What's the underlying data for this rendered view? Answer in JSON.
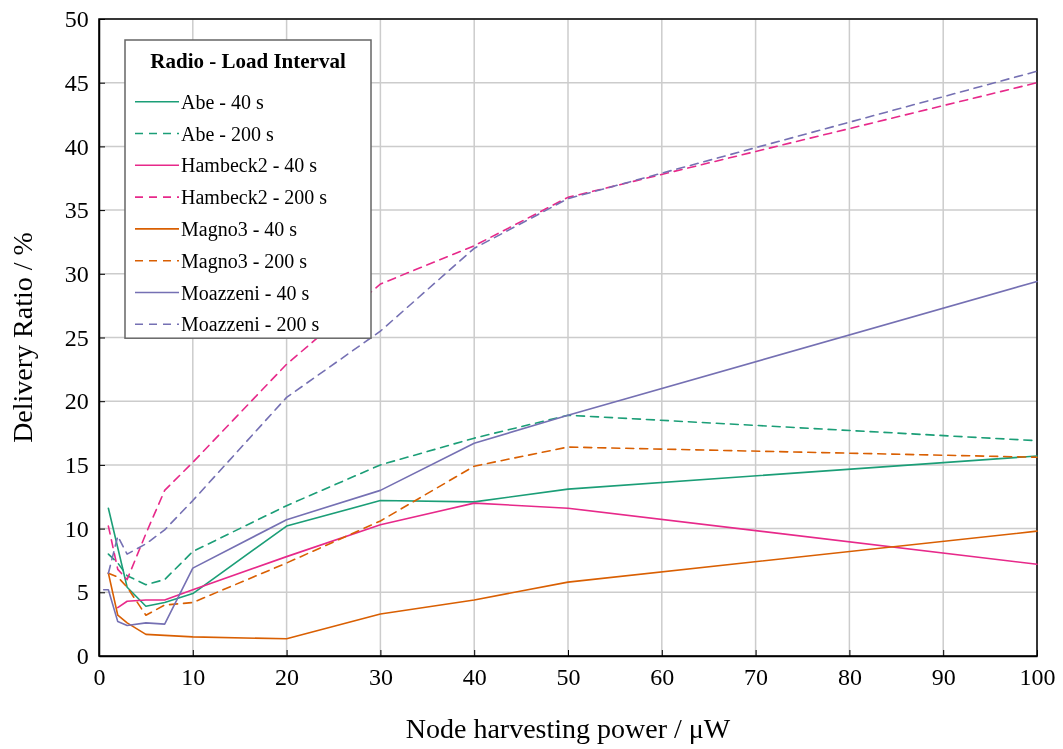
{
  "chart_data": {
    "type": "line",
    "xlabel": "Node harvesting power / μW",
    "ylabel": "Delivery Ratio / %",
    "legend_title": "Radio - Load Interval",
    "legend": "top left",
    "grid": true,
    "marker": "none",
    "xlim": [
      0,
      100
    ],
    "xticks": [
      0,
      10,
      20,
      30,
      40,
      50,
      60,
      70,
      80,
      90,
      100
    ],
    "ylim": [
      0,
      50
    ],
    "yticks": [
      0,
      5,
      10,
      15,
      20,
      25,
      30,
      35,
      40,
      45,
      50
    ],
    "series": [
      {
        "name": "Abe - 40 s",
        "color": "#1b9e77",
        "line_style": "solid",
        "x": [
          1,
          2,
          3,
          5,
          7,
          10,
          20,
          30,
          40,
          50,
          100
        ],
        "values": [
          11.6,
          8.5,
          5.4,
          3.9,
          4.2,
          4.9,
          10.2,
          12.2,
          12.1,
          13.1,
          15.7
        ]
      },
      {
        "name": "Abe - 200 s",
        "color": "#1b9e77",
        "line_style": "dashed",
        "x": [
          1,
          2,
          3,
          5,
          7,
          10,
          20,
          30,
          40,
          50,
          100
        ],
        "values": [
          8,
          7.3,
          6.3,
          5.6,
          6,
          8.2,
          11.8,
          15,
          17.1,
          18.9,
          16.9
        ]
      },
      {
        "name": "Hambeck2 - 40 s",
        "color": "#e7298a",
        "line_style": "solid",
        "x": [
          2,
          3,
          5,
          7,
          10,
          20,
          30,
          40,
          50,
          100
        ],
        "values": [
          3.8,
          4.3,
          4.4,
          4.4,
          5.2,
          7.8,
          10.3,
          12,
          11.6,
          7.2
        ]
      },
      {
        "name": "Hambeck2 - 200 s",
        "color": "#e7298a",
        "line_style": "dashed",
        "x": [
          1,
          2,
          3,
          5,
          7,
          10,
          20,
          30,
          40,
          50,
          100
        ],
        "values": [
          10.2,
          6.8,
          6,
          9.6,
          13,
          15.2,
          22.9,
          29.2,
          32.2,
          36,
          45
        ]
      },
      {
        "name": "Magno3 - 40 s",
        "color": "#d95f02",
        "line_style": "solid",
        "x": [
          1,
          2,
          3,
          5,
          10,
          20,
          30,
          40,
          50,
          100
        ],
        "values": [
          6.5,
          3.2,
          2.6,
          1.7,
          1.5,
          1.35,
          3.3,
          4.4,
          5.8,
          9.8
        ]
      },
      {
        "name": "Magno3 - 200 s",
        "color": "#d95f02",
        "line_style": "dashed",
        "x": [
          1,
          2,
          3,
          5,
          7,
          10,
          20,
          30,
          40,
          50,
          100
        ],
        "values": [
          6.5,
          6.2,
          5.4,
          3.2,
          4,
          4.2,
          7.3,
          10.6,
          14.9,
          16.4,
          15.6
        ]
      },
      {
        "name": "Moazzeni - 40 s",
        "color": "#7570b3",
        "line_style": "solid",
        "x": [
          0.5,
          1,
          2,
          3,
          5,
          7,
          10,
          20,
          30,
          40,
          50,
          100
        ],
        "values": [
          5.2,
          5.2,
          2.7,
          2.4,
          2.6,
          2.5,
          6.9,
          10.7,
          13,
          16.7,
          18.9,
          29.4
        ]
      },
      {
        "name": "Moazzeni - 200 s",
        "color": "#7570b3",
        "line_style": "dashed",
        "x": [
          1,
          2,
          3,
          5,
          7,
          10,
          20,
          30,
          40,
          50,
          100
        ],
        "values": [
          6.5,
          9.4,
          8,
          8.8,
          9.9,
          12.2,
          20.3,
          25.5,
          32,
          35.9,
          45.9
        ]
      }
    ]
  }
}
